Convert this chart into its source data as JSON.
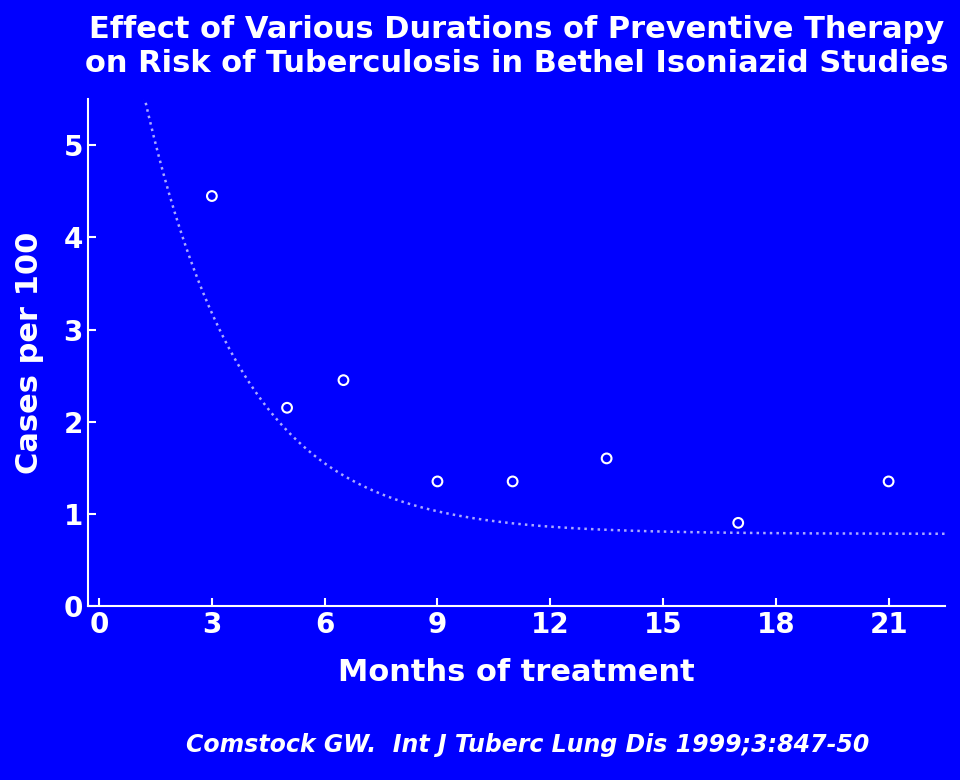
{
  "title_line1": "Effect of Various Durations of Preventive Therapy",
  "title_line2": "on Risk of Tuberculosis in Bethel Isoniazid Studies",
  "xlabel": "Months of treatment",
  "ylabel": "Cases per 100",
  "citation": "Comstock GW.  Int J Tuberc Lung Dis 1999;3:847-50",
  "bg_color": "#0000FF",
  "text_color": "#FFFFFF",
  "scatter_x": [
    3,
    5,
    6.5,
    9,
    11,
    13.5,
    17,
    21
  ],
  "scatter_y": [
    4.45,
    2.15,
    2.45,
    1.35,
    1.35,
    1.6,
    0.9,
    1.35
  ],
  "curve_x_start": 0.3,
  "curve_x_end": 22.5,
  "curve_a": 7.5,
  "curve_b": 0.38,
  "curve_c": 0.78,
  "xlim": [
    -0.3,
    22.5
  ],
  "ylim": [
    0,
    5.5
  ],
  "xticks": [
    0,
    3,
    6,
    9,
    12,
    15,
    18,
    21
  ],
  "yticks": [
    0,
    1,
    2,
    3,
    4,
    5
  ],
  "title_fontsize": 22,
  "axis_label_fontsize": 22,
  "tick_fontsize": 20,
  "citation_fontsize": 17,
  "marker_size": 7,
  "marker_color": "#FFFFFF",
  "curve_color": "#AAAAFF",
  "dot_style": ":"
}
